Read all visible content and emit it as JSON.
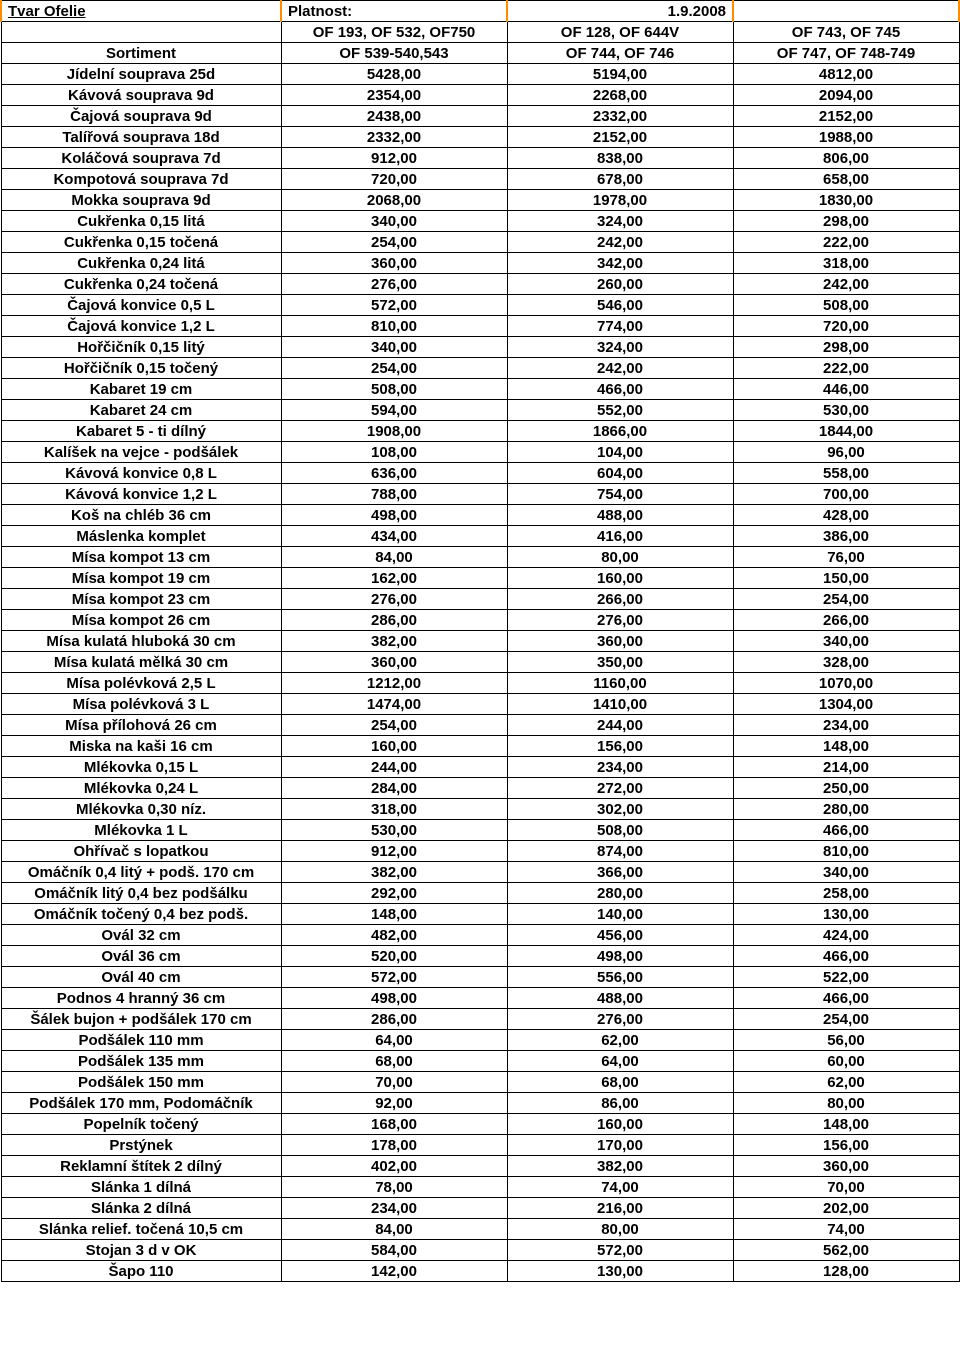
{
  "header": {
    "title": "Tvar Ofelie",
    "platnost_label": "Platnost:",
    "platnost_value": "1.9.2008",
    "sortiment_label": "Sortiment",
    "col1_line1": "OF 193, OF 532, OF750",
    "col1_line2": "OF 539-540,543",
    "col2_line1": "OF 128, OF 644V",
    "col2_line2": "OF 744, OF 746",
    "col3_line1": "OF 743, OF 745",
    "col3_line2": "OF 747, OF 748-749"
  },
  "rows": [
    {
      "n": "Jídelní souprava 25d",
      "a": "5428,00",
      "b": "5194,00",
      "c": "4812,00"
    },
    {
      "n": "Kávová souprava 9d",
      "a": "2354,00",
      "b": "2268,00",
      "c": "2094,00"
    },
    {
      "n": "Čajová souprava 9d",
      "a": "2438,00",
      "b": "2332,00",
      "c": "2152,00"
    },
    {
      "n": "Talířová souprava 18d",
      "a": "2332,00",
      "b": "2152,00",
      "c": "1988,00"
    },
    {
      "n": "Koláčová souprava 7d",
      "a": "912,00",
      "b": "838,00",
      "c": "806,00"
    },
    {
      "n": "Kompotová souprava 7d",
      "a": "720,00",
      "b": "678,00",
      "c": "658,00"
    },
    {
      "n": "Mokka souprava 9d",
      "a": "2068,00",
      "b": "1978,00",
      "c": "1830,00"
    },
    {
      "n": "Cukřenka 0,15 litá",
      "a": "340,00",
      "b": "324,00",
      "c": "298,00"
    },
    {
      "n": "Cukřenka 0,15 točená",
      "a": "254,00",
      "b": "242,00",
      "c": "222,00"
    },
    {
      "n": "Cukřenka 0,24 litá",
      "a": "360,00",
      "b": "342,00",
      "c": "318,00"
    },
    {
      "n": "Cukřenka 0,24 točená",
      "a": "276,00",
      "b": "260,00",
      "c": "242,00"
    },
    {
      "n": "Čajová konvice 0,5 L",
      "a": "572,00",
      "b": "546,00",
      "c": "508,00"
    },
    {
      "n": "Čajová konvice 1,2 L",
      "a": "810,00",
      "b": "774,00",
      "c": "720,00"
    },
    {
      "n": "Hořčičník 0,15 litý",
      "a": "340,00",
      "b": "324,00",
      "c": "298,00"
    },
    {
      "n": "Hořčičník 0,15 točený",
      "a": "254,00",
      "b": "242,00",
      "c": "222,00"
    },
    {
      "n": "Kabaret 19 cm",
      "a": "508,00",
      "b": "466,00",
      "c": "446,00"
    },
    {
      "n": "Kabaret 24 cm",
      "a": "594,00",
      "b": "552,00",
      "c": "530,00"
    },
    {
      "n": "Kabaret 5 - ti dílný",
      "a": "1908,00",
      "b": "1866,00",
      "c": "1844,00"
    },
    {
      "n": "Kalíšek na vejce - podšálek",
      "a": "108,00",
      "b": "104,00",
      "c": "96,00"
    },
    {
      "n": "Kávová konvice 0,8 L",
      "a": "636,00",
      "b": "604,00",
      "c": "558,00"
    },
    {
      "n": "Kávová konvice 1,2 L",
      "a": "788,00",
      "b": "754,00",
      "c": "700,00"
    },
    {
      "n": "Koš na chléb 36 cm",
      "a": "498,00",
      "b": "488,00",
      "c": "428,00"
    },
    {
      "n": "Máslenka komplet",
      "a": "434,00",
      "b": "416,00",
      "c": "386,00"
    },
    {
      "n": "Mísa kompot 13 cm",
      "a": "84,00",
      "b": "80,00",
      "c": "76,00"
    },
    {
      "n": "Mísa kompot 19 cm",
      "a": "162,00",
      "b": "160,00",
      "c": "150,00"
    },
    {
      "n": "Mísa kompot 23 cm",
      "a": "276,00",
      "b": "266,00",
      "c": "254,00"
    },
    {
      "n": "Mísa kompot 26 cm",
      "a": "286,00",
      "b": "276,00",
      "c": "266,00"
    },
    {
      "n": "Mísa kulatá hluboká 30 cm",
      "a": "382,00",
      "b": "360,00",
      "c": "340,00"
    },
    {
      "n": "Mísa kulatá mělká 30 cm",
      "a": "360,00",
      "b": "350,00",
      "c": "328,00"
    },
    {
      "n": "Mísa polévková 2,5 L",
      "a": "1212,00",
      "b": "1160,00",
      "c": "1070,00"
    },
    {
      "n": "Mísa polévková 3 L",
      "a": "1474,00",
      "b": "1410,00",
      "c": "1304,00"
    },
    {
      "n": "Mísa přílohová 26 cm",
      "a": "254,00",
      "b": "244,00",
      "c": "234,00"
    },
    {
      "n": "Miska na kaši 16 cm",
      "a": "160,00",
      "b": "156,00",
      "c": "148,00"
    },
    {
      "n": "Mlékovka 0,15 L",
      "a": "244,00",
      "b": "234,00",
      "c": "214,00"
    },
    {
      "n": "Mlékovka 0,24 L",
      "a": "284,00",
      "b": "272,00",
      "c": "250,00"
    },
    {
      "n": "Mlékovka 0,30 níz.",
      "a": "318,00",
      "b": "302,00",
      "c": "280,00"
    },
    {
      "n": "Mlékovka 1 L",
      "a": "530,00",
      "b": "508,00",
      "c": "466,00"
    },
    {
      "n": "Ohřívač s lopatkou",
      "a": "912,00",
      "b": "874,00",
      "c": "810,00"
    },
    {
      "n": "Omáčník 0,4 litý + podš. 170 cm",
      "a": "382,00",
      "b": "366,00",
      "c": "340,00"
    },
    {
      "n": "Omáčník litý 0,4 bez podšálku",
      "a": "292,00",
      "b": "280,00",
      "c": "258,00"
    },
    {
      "n": "Omáčník točený 0,4 bez podš.",
      "a": "148,00",
      "b": "140,00",
      "c": "130,00"
    },
    {
      "n": "Ovál 32 cm",
      "a": "482,00",
      "b": "456,00",
      "c": "424,00"
    },
    {
      "n": "Ovál 36 cm",
      "a": "520,00",
      "b": "498,00",
      "c": "466,00"
    },
    {
      "n": "Ovál 40 cm",
      "a": "572,00",
      "b": "556,00",
      "c": "522,00"
    },
    {
      "n": "Podnos 4 hranný 36 cm",
      "a": "498,00",
      "b": "488,00",
      "c": "466,00"
    },
    {
      "n": "Šálek bujon + podšálek 170 cm",
      "a": "286,00",
      "b": "276,00",
      "c": "254,00"
    },
    {
      "n": "Podšálek 110 mm",
      "a": "64,00",
      "b": "62,00",
      "c": "56,00"
    },
    {
      "n": "Podšálek 135 mm",
      "a": "68,00",
      "b": "64,00",
      "c": "60,00"
    },
    {
      "n": "Podšálek 150 mm",
      "a": "70,00",
      "b": "68,00",
      "c": "62,00"
    },
    {
      "n": "Podšálek 170 mm, Podomáčník",
      "a": "92,00",
      "b": "86,00",
      "c": "80,00"
    },
    {
      "n": "Popelník točený",
      "a": "168,00",
      "b": "160,00",
      "c": "148,00"
    },
    {
      "n": "Prstýnek",
      "a": "178,00",
      "b": "170,00",
      "c": "156,00"
    },
    {
      "n": "Reklamní štítek 2 dílný",
      "a": "402,00",
      "b": "382,00",
      "c": "360,00"
    },
    {
      "n": "Slánka 1 dílná",
      "a": "78,00",
      "b": "74,00",
      "c": "70,00"
    },
    {
      "n": "Slánka 2 dílná",
      "a": "234,00",
      "b": "216,00",
      "c": "202,00"
    },
    {
      "n": "Slánka relief. točená 10,5 cm",
      "a": "84,00",
      "b": "80,00",
      "c": "74,00"
    },
    {
      "n": "Stojan 3 d v OK",
      "a": "584,00",
      "b": "572,00",
      "c": "562,00"
    },
    {
      "n": "Šapo 110",
      "a": "142,00",
      "b": "130,00",
      "c": "128,00"
    }
  ]
}
